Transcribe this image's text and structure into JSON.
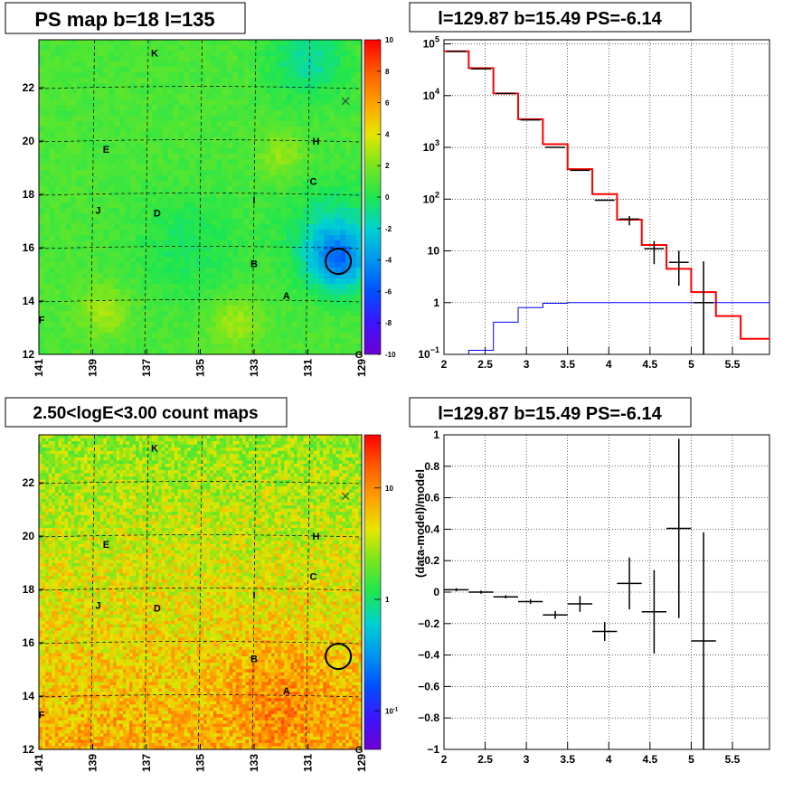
{
  "chart_data": [
    {
      "type": "heatmap",
      "title": "PS map b=18 l=135",
      "x_ticks": [
        "141",
        "139",
        "137",
        "135",
        "133",
        "131",
        "129"
      ],
      "y_ticks": [
        "12",
        "14",
        "16",
        "18",
        "20",
        "22"
      ],
      "xlim": [
        141,
        129
      ],
      "ylim": [
        12,
        23.8
      ],
      "zlim": [
        -10,
        10
      ],
      "colorbar_ticks": [
        "10",
        "8",
        "6",
        "4",
        "2",
        "0",
        "-2",
        "-4",
        "-6",
        "-8",
        "-10"
      ],
      "grid": true,
      "source_labels": [
        {
          "text": "K",
          "l": 136.7,
          "b": 23.3
        },
        {
          "text": "H",
          "l": 130.7,
          "b": 20.0
        },
        {
          "text": "E",
          "l": 138.5,
          "b": 19.7
        },
        {
          "text": "C",
          "l": 130.8,
          "b": 18.5
        },
        {
          "text": "I",
          "l": 133.0,
          "b": 17.8
        },
        {
          "text": "J",
          "l": 138.8,
          "b": 17.4
        },
        {
          "text": "D",
          "l": 136.6,
          "b": 17.3
        },
        {
          "text": "B",
          "l": 133.0,
          "b": 15.4
        },
        {
          "text": "A",
          "l": 131.8,
          "b": 14.2
        },
        {
          "text": "F",
          "l": 140.9,
          "b": 13.3
        },
        {
          "text": "G",
          "l": 129.1,
          "b": 12.0
        }
      ],
      "marker_x": {
        "l": 129.6,
        "b": 21.5
      },
      "circle": {
        "l": 129.87,
        "b": 15.49
      }
    },
    {
      "type": "line",
      "title": "l=129.87 b=15.49 PS=-6.14",
      "log_y": true,
      "xlim": [
        2,
        5.95
      ],
      "ylim": [
        0.1,
        120000
      ],
      "x_ticks": [
        "2",
        "2.5",
        "3",
        "3.5",
        "4",
        "4.5",
        "5",
        "5.5"
      ],
      "y_ticks": [
        {
          "v": 0.1,
          "label": "10",
          "sup": "−1"
        },
        {
          "v": 1,
          "label": "1",
          "sup": ""
        },
        {
          "v": 10,
          "label": "10",
          "sup": ""
        },
        {
          "v": 100,
          "label": "10",
          "sup": "2"
        },
        {
          "v": 1000,
          "label": "10",
          "sup": "3"
        },
        {
          "v": 10000,
          "label": "10",
          "sup": "4"
        },
        {
          "v": 100000,
          "label": "10",
          "sup": "5"
        }
      ],
      "bin_edges": [
        2.0,
        2.3,
        2.6,
        2.9,
        3.2,
        3.5,
        3.8,
        4.1,
        4.4,
        4.7,
        5.0,
        5.3,
        5.6,
        5.95
      ],
      "series": [
        {
          "color": "#ff0000",
          "values": [
            72000,
            34000,
            11000,
            3500,
            1150,
            380,
            125,
            40,
            13,
            4.5,
            1.6,
            0.55,
            0.2
          ]
        },
        {
          "color": "#0000ff",
          "values": [
            0.085,
            0.12,
            0.42,
            0.8,
            0.97,
            1.0,
            1.0,
            1.0,
            1.0,
            1.0,
            1.0,
            1.0,
            1.0
          ]
        }
      ],
      "points": [
        {
          "x": 2.15,
          "y": 72000,
          "dy": 0
        },
        {
          "x": 2.45,
          "y": 33000,
          "dy": 0
        },
        {
          "x": 2.75,
          "y": 11000,
          "dy": 0
        },
        {
          "x": 3.05,
          "y": 3400,
          "dy": 0
        },
        {
          "x": 3.35,
          "y": 1000,
          "dy": 0
        },
        {
          "x": 3.65,
          "y": 360,
          "dy": 0
        },
        {
          "x": 3.95,
          "y": 95,
          "dy": 0
        },
        {
          "x": 4.25,
          "y": 41,
          "dy": 0.12
        },
        {
          "x": 4.55,
          "y": 11,
          "dy": 0.3
        },
        {
          "x": 4.85,
          "y": 6,
          "dy": 0.45
        },
        {
          "x": 5.15,
          "y": 1.0,
          "dy": 1.6
        }
      ]
    },
    {
      "type": "heatmap",
      "title": "2.50<logE<3.00 count maps",
      "x_ticks": [
        "141",
        "139",
        "137",
        "135",
        "133",
        "131",
        "129"
      ],
      "y_ticks": [
        "12",
        "14",
        "16",
        "18",
        "20",
        "22"
      ],
      "xlim": [
        141,
        129
      ],
      "ylim": [
        12,
        23.8
      ],
      "colorbar_log": true,
      "colorbar_ticks": [
        {
          "v": 10,
          "label": "10",
          "sup": ""
        },
        {
          "v": 1,
          "label": "1",
          "sup": ""
        },
        {
          "v": 0.1,
          "label": "10",
          "sup": "-1"
        }
      ],
      "grid": true,
      "source_labels": [
        {
          "text": "K",
          "l": 136.7,
          "b": 23.3
        },
        {
          "text": "H",
          "l": 130.7,
          "b": 20.0
        },
        {
          "text": "E",
          "l": 138.5,
          "b": 19.7
        },
        {
          "text": "C",
          "l": 130.8,
          "b": 18.5
        },
        {
          "text": "I",
          "l": 133.0,
          "b": 17.8
        },
        {
          "text": "J",
          "l": 138.8,
          "b": 17.4
        },
        {
          "text": "D",
          "l": 136.6,
          "b": 17.3
        },
        {
          "text": "B",
          "l": 133.0,
          "b": 15.4
        },
        {
          "text": "A",
          "l": 131.8,
          "b": 14.2
        },
        {
          "text": "F",
          "l": 140.9,
          "b": 13.3
        },
        {
          "text": "G",
          "l": 129.1,
          "b": 12.0
        }
      ],
      "marker_x": {
        "l": 129.6,
        "b": 21.5
      },
      "circle": {
        "l": 129.87,
        "b": 15.49
      }
    },
    {
      "type": "scatter",
      "title": "l=129.87 b=15.49 PS=-6.14",
      "ylabel": "(data-model)/model",
      "xlim": [
        2,
        5.95
      ],
      "ylim": [
        -1,
        1
      ],
      "x_ticks": [
        "2",
        "2.5",
        "3",
        "3.5",
        "4",
        "4.5",
        "5",
        "5.5"
      ],
      "y_ticks": [
        "1",
        "0.8",
        "0.6",
        "0.4",
        "0.2",
        "0",
        "-0.2",
        "-0.4",
        "-0.6",
        "-0.8",
        "-1"
      ],
      "grid": true,
      "points": [
        {
          "x": 2.15,
          "y": 0.015,
          "dy": 0.01
        },
        {
          "x": 2.45,
          "y": 0.0,
          "dy": 0.01
        },
        {
          "x": 2.75,
          "y": -0.03,
          "dy": 0.01
        },
        {
          "x": 3.05,
          "y": -0.06,
          "dy": 0.015
        },
        {
          "x": 3.35,
          "y": -0.145,
          "dy": 0.025
        },
        {
          "x": 3.65,
          "y": -0.075,
          "dy": 0.05
        },
        {
          "x": 3.95,
          "y": -0.25,
          "dy": 0.06
        },
        {
          "x": 4.25,
          "y": 0.055,
          "dy": 0.165
        },
        {
          "x": 4.55,
          "y": -0.125,
          "dy": 0.265
        },
        {
          "x": 4.85,
          "y": 0.405,
          "dy": 0.57
        },
        {
          "x": 5.15,
          "y": -0.31,
          "dy": 0.69
        }
      ]
    }
  ]
}
